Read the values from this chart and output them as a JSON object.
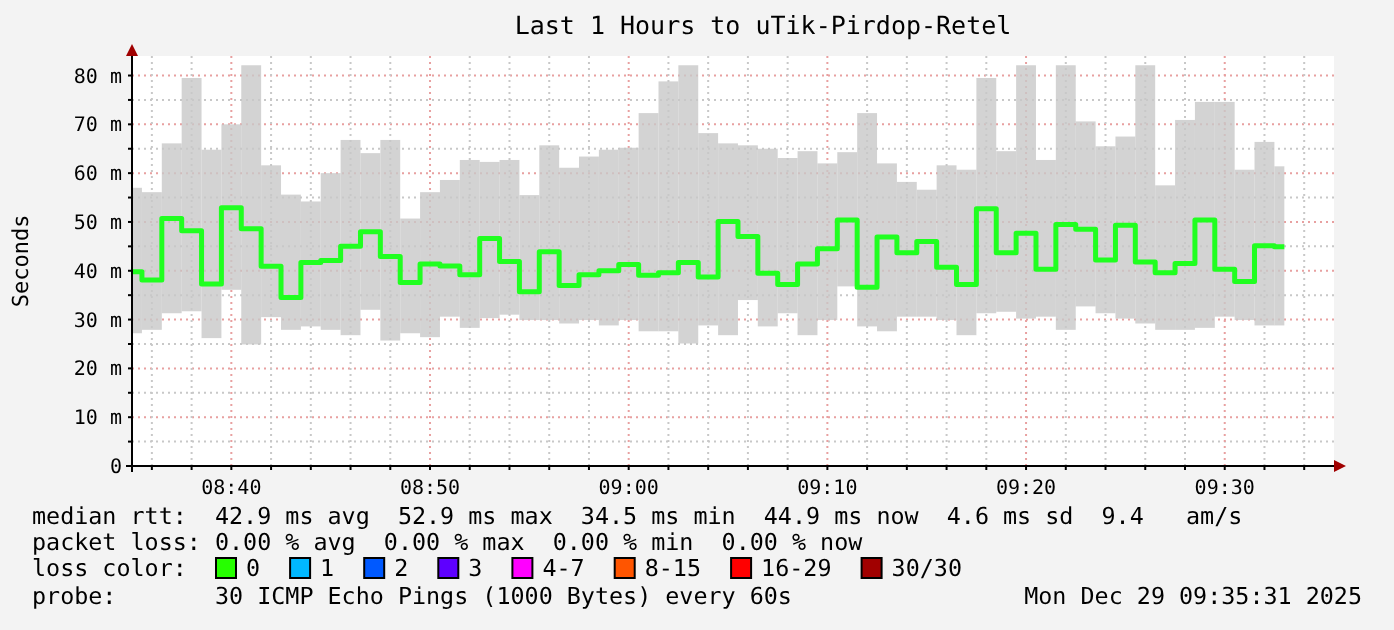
{
  "chart_data": {
    "type": "step",
    "title": "Last 1 Hours to uTik-Pirdop-Retel",
    "ylabel": "Seconds",
    "x": [
      "2025-12-29T08:35",
      "2025-12-29T08:36",
      "2025-12-29T08:37",
      "2025-12-29T08:38",
      "2025-12-29T08:39",
      "2025-12-29T08:40",
      "2025-12-29T08:41",
      "2025-12-29T08:42",
      "2025-12-29T08:43",
      "2025-12-29T08:44",
      "2025-12-29T08:45",
      "2025-12-29T08:46",
      "2025-12-29T08:47",
      "2025-12-29T08:48",
      "2025-12-29T08:49",
      "2025-12-29T08:50",
      "2025-12-29T08:51",
      "2025-12-29T08:52",
      "2025-12-29T08:53",
      "2025-12-29T08:54",
      "2025-12-29T08:55",
      "2025-12-29T08:56",
      "2025-12-29T08:57",
      "2025-12-29T08:58",
      "2025-12-29T08:59",
      "2025-12-29T09:00",
      "2025-12-29T09:01",
      "2025-12-29T09:02",
      "2025-12-29T09:03",
      "2025-12-29T09:04",
      "2025-12-29T09:05",
      "2025-12-29T09:06",
      "2025-12-29T09:07",
      "2025-12-29T09:08",
      "2025-12-29T09:09",
      "2025-12-29T09:10",
      "2025-12-29T09:11",
      "2025-12-29T09:12",
      "2025-12-29T09:13",
      "2025-12-29T09:14",
      "2025-12-29T09:15",
      "2025-12-29T09:16",
      "2025-12-29T09:17",
      "2025-12-29T09:18",
      "2025-12-29T09:19",
      "2025-12-29T09:20",
      "2025-12-29T09:21",
      "2025-12-29T09:22",
      "2025-12-29T09:23",
      "2025-12-29T09:24",
      "2025-12-29T09:25",
      "2025-12-29T09:26",
      "2025-12-29T09:27",
      "2025-12-29T09:28",
      "2025-12-29T09:29",
      "2025-12-29T09:30",
      "2025-12-29T09:31",
      "2025-12-29T09:32",
      "2025-12-29T09:33"
    ],
    "series": [
      {
        "color": "#20ff20",
        "values": [
          39.8,
          38.1,
          50.7,
          48.2,
          37.3,
          52.9,
          48.6,
          40.9,
          34.5,
          41.7,
          42.1,
          45,
          48,
          42.9,
          37.6,
          41.4,
          41,
          39.2,
          46.6,
          41.9,
          35.7,
          43.9,
          37,
          39.2,
          40,
          41.3,
          39.1,
          39.6,
          41.7,
          38.7,
          50.1,
          47,
          39.5,
          37.2,
          41.4,
          44.5,
          50.4,
          36.6,
          46.9,
          43.7,
          46,
          40.7,
          37.2,
          52.7,
          43.7,
          47.7,
          40.3,
          49.5,
          48.5,
          42.2,
          49.3,
          41.8,
          39.6,
          41.5,
          50.4,
          40.3,
          37.8,
          45.1,
          44.9
        ],
        "lower": [
          27.2,
          27.9,
          31.3,
          31.7,
          26.2,
          36.1,
          24.9,
          30.5,
          27.9,
          28.6,
          27.9,
          26.8,
          32,
          25.7,
          27.2,
          26.4,
          30.6,
          28.3,
          30.3,
          31,
          29.9,
          29.9,
          29.2,
          29.9,
          28.8,
          29.9,
          27.6,
          27.6,
          25.1,
          28.8,
          26.8,
          34,
          28.6,
          31.3,
          26.8,
          29.9,
          36.8,
          28.6,
          27.6,
          30.6,
          30.6,
          29.9,
          26.8,
          31.3,
          31.6,
          30.2,
          30.6,
          27.9,
          32.7,
          31.3,
          30.2,
          29.2,
          27.9,
          27.9,
          28.3,
          30.6,
          29.9,
          28.8,
          28.8
        ],
        "upper": [
          57,
          56.1,
          66.1,
          79.5,
          64.8,
          70,
          82.1,
          61.6,
          55.6,
          54.2,
          60,
          66.8,
          64.1,
          66.8,
          50.7,
          56.1,
          58.6,
          62.7,
          62.3,
          62.7,
          55.5,
          65.7,
          61.1,
          63.4,
          64.8,
          65.2,
          72.3,
          78.8,
          82.1,
          68.2,
          66.1,
          65.7,
          65,
          63.1,
          64.5,
          62,
          64.3,
          72.3,
          62,
          58.2,
          56.6,
          61.6,
          60.7,
          79.5,
          64.5,
          82.1,
          62.7,
          82.1,
          70.6,
          65.5,
          67.5,
          82.1,
          57.5,
          70.9,
          74.6,
          74.6,
          60.7,
          66.4,
          61.4
        ]
      }
    ],
    "xlim": [
      "2025-12-29T08:35",
      "2025-12-29T09:35:30"
    ],
    "xticks": [
      {
        "value": "2025-12-29T08:36",
        "label": null
      },
      {
        "value": "2025-12-29T08:38",
        "label": null
      },
      {
        "value": "2025-12-29T08:40",
        "label": "08:40"
      },
      {
        "value": "2025-12-29T08:42",
        "label": null
      },
      {
        "value": "2025-12-29T08:44",
        "label": null
      },
      {
        "value": "2025-12-29T08:46",
        "label": null
      },
      {
        "value": "2025-12-29T08:48",
        "label": null
      },
      {
        "value": "2025-12-29T08:50",
        "label": "08:50"
      },
      {
        "value": "2025-12-29T08:52",
        "label": null
      },
      {
        "value": "2025-12-29T08:54",
        "label": null
      },
      {
        "value": "2025-12-29T08:56",
        "label": null
      },
      {
        "value": "2025-12-29T08:58",
        "label": null
      },
      {
        "value": "2025-12-29T09:00",
        "label": "09:00"
      },
      {
        "value": "2025-12-29T09:02",
        "label": null
      },
      {
        "value": "2025-12-29T09:04",
        "label": null
      },
      {
        "value": "2025-12-29T09:06",
        "label": null
      },
      {
        "value": "2025-12-29T09:08",
        "label": null
      },
      {
        "value": "2025-12-29T09:10",
        "label": "09:10"
      },
      {
        "value": "2025-12-29T09:12",
        "label": null
      },
      {
        "value": "2025-12-29T09:14",
        "label": null
      },
      {
        "value": "2025-12-29T09:16",
        "label": null
      },
      {
        "value": "2025-12-29T09:18",
        "label": null
      },
      {
        "value": "2025-12-29T09:20",
        "label": "09:20"
      },
      {
        "value": "2025-12-29T09:22",
        "label": null
      },
      {
        "value": "2025-12-29T09:24",
        "label": null
      },
      {
        "value": "2025-12-29T09:26",
        "label": null
      },
      {
        "value": "2025-12-29T09:28",
        "label": null
      },
      {
        "value": "2025-12-29T09:30",
        "label": "09:30"
      },
      {
        "value": "2025-12-29T09:32",
        "label": null
      },
      {
        "value": "2025-12-29T09:34",
        "label": null
      }
    ],
    "ylim": [
      0,
      84
    ],
    "yticks": [
      0,
      {
        "value": 5,
        "label": null
      },
      {
        "value": 10,
        "label": "10 m"
      },
      {
        "value": 15,
        "label": null
      },
      {
        "value": 20,
        "label": "20 m"
      },
      {
        "value": 25,
        "label": null
      },
      {
        "value": 30,
        "label": "30 m"
      },
      {
        "value": 35,
        "label": null
      },
      {
        "value": 40,
        "label": "40 m"
      },
      {
        "value": 45,
        "label": null
      },
      {
        "value": 50,
        "label": "50 m"
      },
      {
        "value": 55,
        "label": null
      },
      {
        "value": 60,
        "label": "60 m"
      },
      {
        "value": 65,
        "label": null
      },
      {
        "value": 70,
        "label": "70 m"
      },
      {
        "value": 75,
        "label": null
      },
      {
        "value": 80,
        "label": "80 m"
      }
    ],
    "grid": true,
    "annotations": [
      "median rtt:  42.9 ms avg  52.9 ms max  34.5 ms min  44.9 ms now  4.6 ms sd  9.4   am/s",
      "packet loss: 0.00 % avg  0.00 % max  0.00 % min  0.00 % now",
      "loss color:",
      "0",
      "1",
      "2",
      "3",
      "4-7",
      "8-15",
      "16-29",
      "30/30",
      "probe:       30 ICMP Echo Pings (1000 Bytes) every 60s",
      "Mon Dec 29 09:35:31 2025"
    ]
  }
}
